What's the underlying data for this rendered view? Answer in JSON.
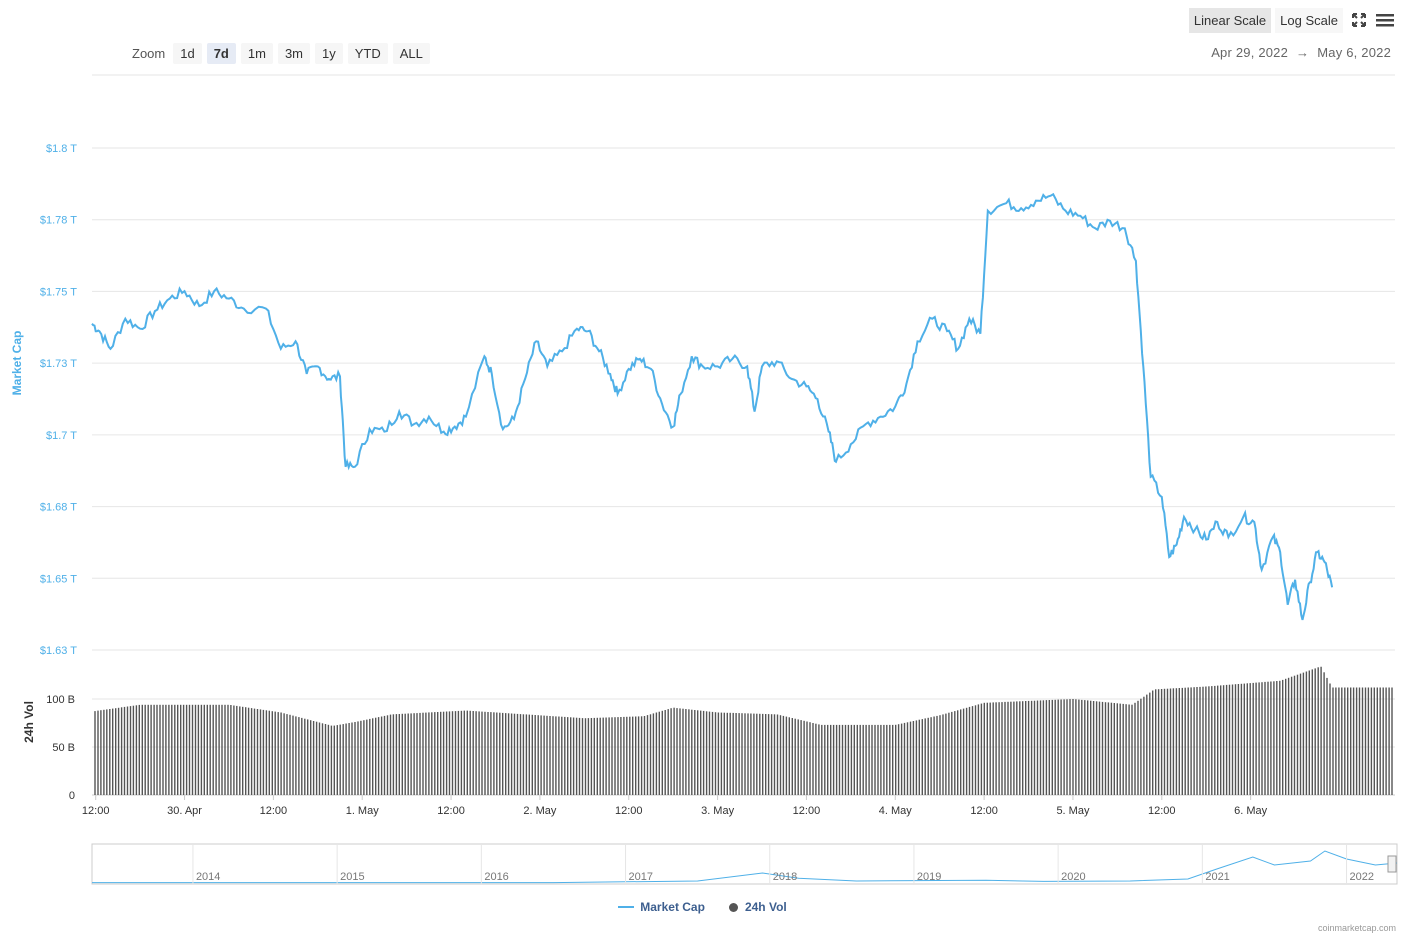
{
  "toolbar": {
    "zoom_label": "Zoom",
    "zoom_options": [
      "1d",
      "7d",
      "1m",
      "3m",
      "1y",
      "YTD",
      "ALL"
    ],
    "zoom_active": "7d",
    "linear_scale": "Linear Scale",
    "log_scale": "Log Scale",
    "date_from": "Apr 29, 2022",
    "date_arrow": "→",
    "date_to": "May 6, 2022"
  },
  "legend": {
    "market_cap": "Market Cap",
    "vol": "24h Vol"
  },
  "credit": "coinmarketcap.com",
  "colors": {
    "market_cap": "#4fb0e8",
    "volume": "#555555",
    "grid": "#e6e6e6",
    "axis_text": "#4fb0e8"
  },
  "chart_data": {
    "type": "line",
    "x_unit": "date-time",
    "x_range": [
      "2022-04-29 11:30",
      "2022-05-06 19:30"
    ],
    "ylabel": "Market Cap",
    "yticks": [
      "$1.63 T",
      "$1.65 T",
      "$1.68 T",
      "$1.7 T",
      "$1.73 T",
      "$1.75 T",
      "$1.78 T",
      "$1.8 T"
    ],
    "ylim": [
      1.625,
      1.825
    ],
    "x_tick_labels": [
      "12:00",
      "30. Apr",
      "12:00",
      "1. May",
      "12:00",
      "2. May",
      "12:00",
      "3. May",
      "12:00",
      "4. May",
      "12:00",
      "5. May",
      "12:00",
      "6. May"
    ],
    "series": [
      {
        "name": "Market Cap",
        "unit": "T USD",
        "points": [
          [
            "2022-04-29 11:30",
            1.755
          ],
          [
            "2022-04-29 12:30",
            1.752
          ],
          [
            "2022-04-29 14:00",
            1.745
          ],
          [
            "2022-04-29 16:00",
            1.757
          ],
          [
            "2022-04-29 18:00",
            1.753
          ],
          [
            "2022-04-29 20:00",
            1.76
          ],
          [
            "2022-04-29 22:00",
            1.765
          ],
          [
            "2022-04-30 00:00",
            1.768
          ],
          [
            "2022-04-30 02:00",
            1.762
          ],
          [
            "2022-04-30 04:00",
            1.768
          ],
          [
            "2022-04-30 06:00",
            1.765
          ],
          [
            "2022-04-30 08:00",
            1.761
          ],
          [
            "2022-04-30 11:00",
            1.761
          ],
          [
            "2022-04-30 13:00",
            1.745
          ],
          [
            "2022-04-30 15:00",
            1.748
          ],
          [
            "2022-04-30 16:30",
            1.735
          ],
          [
            "2022-04-30 18:00",
            1.738
          ],
          [
            "2022-04-30 19:30",
            1.733
          ],
          [
            "2022-04-30 21:00",
            1.734
          ],
          [
            "2022-04-30 21:45",
            1.698
          ],
          [
            "2022-04-30 23:00",
            1.698
          ],
          [
            "2022-05-01 01:00",
            1.713
          ],
          [
            "2022-05-01 03:00",
            1.712
          ],
          [
            "2022-05-01 05:00",
            1.72
          ],
          [
            "2022-05-01 07:00",
            1.715
          ],
          [
            "2022-05-01 09:00",
            1.718
          ],
          [
            "2022-05-01 11:00",
            1.712
          ],
          [
            "2022-05-01 12:30",
            1.714
          ],
          [
            "2022-05-01 14:00",
            1.718
          ],
          [
            "2022-05-01 16:30",
            1.742
          ],
          [
            "2022-05-01 17:30",
            1.735
          ],
          [
            "2022-05-01 19:00",
            1.713
          ],
          [
            "2022-05-01 20:30",
            1.717
          ],
          [
            "2022-05-01 22:00",
            1.733
          ],
          [
            "2022-05-01 23:30",
            1.748
          ],
          [
            "2022-05-02 01:00",
            1.738
          ],
          [
            "2022-05-02 03:00",
            1.744
          ],
          [
            "2022-05-02 05:00",
            1.753
          ],
          [
            "2022-05-02 06:30",
            1.752
          ],
          [
            "2022-05-02 08:00",
            1.744
          ],
          [
            "2022-05-02 09:30",
            1.735
          ],
          [
            "2022-05-02 10:30",
            1.727
          ],
          [
            "2022-05-02 12:00",
            1.737
          ],
          [
            "2022-05-02 13:30",
            1.741
          ],
          [
            "2022-05-02 15:00",
            1.737
          ],
          [
            "2022-05-02 16:30",
            1.723
          ],
          [
            "2022-05-02 18:00",
            1.714
          ],
          [
            "2022-05-02 19:00",
            1.727
          ],
          [
            "2022-05-02 20:30",
            1.742
          ],
          [
            "2022-05-02 22:00",
            1.738
          ],
          [
            "2022-05-03 00:00",
            1.738
          ],
          [
            "2022-05-03 02:00",
            1.741
          ],
          [
            "2022-05-03 04:00",
            1.738
          ],
          [
            "2022-05-03 05:00",
            1.72
          ],
          [
            "2022-05-03 06:00",
            1.738
          ],
          [
            "2022-05-03 08:00",
            1.74
          ],
          [
            "2022-05-03 10:00",
            1.733
          ],
          [
            "2022-05-03 12:00",
            1.73
          ],
          [
            "2022-05-03 13:30",
            1.725
          ],
          [
            "2022-05-03 15:00",
            1.712
          ],
          [
            "2022-05-03 16:00",
            1.7
          ],
          [
            "2022-05-03 18:00",
            1.707
          ],
          [
            "2022-05-03 20:00",
            1.715
          ],
          [
            "2022-05-03 22:00",
            1.718
          ],
          [
            "2022-05-04 00:00",
            1.722
          ],
          [
            "2022-05-04 01:30",
            1.731
          ],
          [
            "2022-05-04 03:00",
            1.748
          ],
          [
            "2022-05-04 05:00",
            1.757
          ],
          [
            "2022-05-04 07:00",
            1.752
          ],
          [
            "2022-05-04 08:30",
            1.745
          ],
          [
            "2022-05-04 10:00",
            1.757
          ],
          [
            "2022-05-04 11:30",
            1.751
          ],
          [
            "2022-05-04 12:30",
            1.8
          ],
          [
            "2022-05-04 15:00",
            1.803
          ],
          [
            "2022-05-04 17:00",
            1.801
          ],
          [
            "2022-05-04 19:00",
            1.804
          ],
          [
            "2022-05-04 21:00",
            1.806
          ],
          [
            "2022-05-04 23:00",
            1.8
          ],
          [
            "2022-05-05 01:00",
            1.798
          ],
          [
            "2022-05-05 03:00",
            1.793
          ],
          [
            "2022-05-05 05:00",
            1.796
          ],
          [
            "2022-05-05 07:00",
            1.793
          ],
          [
            "2022-05-05 08:30",
            1.78
          ],
          [
            "2022-05-05 09:30",
            1.738
          ],
          [
            "2022-05-05 10:30",
            1.694
          ],
          [
            "2022-05-05 12:00",
            1.686
          ],
          [
            "2022-05-05 13:00",
            1.662
          ],
          [
            "2022-05-05 14:00",
            1.667
          ],
          [
            "2022-05-05 15:00",
            1.678
          ],
          [
            "2022-05-05 16:30",
            1.673
          ],
          [
            "2022-05-05 18:00",
            1.669
          ],
          [
            "2022-05-05 19:30",
            1.676
          ],
          [
            "2022-05-05 21:00",
            1.67
          ],
          [
            "2022-05-05 23:00",
            1.678
          ],
          [
            "2022-05-06 00:30",
            1.676
          ],
          [
            "2022-05-06 01:30",
            1.657
          ],
          [
            "2022-05-06 03:00",
            1.67
          ],
          [
            "2022-05-06 04:00",
            1.664
          ],
          [
            "2022-05-06 05:00",
            1.643
          ],
          [
            "2022-05-06 06:00",
            1.653
          ],
          [
            "2022-05-06 07:00",
            1.637
          ],
          [
            "2022-05-06 08:00",
            1.652
          ],
          [
            "2022-05-06 09:00",
            1.664
          ],
          [
            "2022-05-06 10:00",
            1.66
          ],
          [
            "2022-05-06 11:00",
            1.65
          ]
        ]
      },
      {
        "name": "24h Vol",
        "unit": "B USD",
        "yticks": [
          "0",
          "50 B",
          "100 B"
        ],
        "ylim": [
          0,
          150
        ],
        "ylabel": "24h Vol",
        "points": [
          [
            "2022-04-29 11:30",
            87
          ],
          [
            "2022-04-29 18:00",
            94
          ],
          [
            "2022-04-30 06:00",
            94
          ],
          [
            "2022-04-30 13:00",
            86
          ],
          [
            "2022-04-30 20:00",
            72
          ],
          [
            "2022-04-30 23:00",
            76
          ],
          [
            "2022-05-01 04:00",
            84
          ],
          [
            "2022-05-01 14:00",
            88
          ],
          [
            "2022-05-01 22:00",
            84
          ],
          [
            "2022-05-02 06:00",
            80
          ],
          [
            "2022-05-02 14:00",
            82
          ],
          [
            "2022-05-02 18:00",
            91
          ],
          [
            "2022-05-03 00:00",
            86
          ],
          [
            "2022-05-03 08:00",
            84
          ],
          [
            "2022-05-03 14:00",
            73
          ],
          [
            "2022-05-04 00:00",
            73
          ],
          [
            "2022-05-04 06:00",
            83
          ],
          [
            "2022-05-04 12:00",
            96
          ],
          [
            "2022-05-05 00:00",
            100
          ],
          [
            "2022-05-05 08:00",
            94
          ],
          [
            "2022-05-05 11:00",
            110
          ],
          [
            "2022-05-05 18:00",
            113
          ],
          [
            "2022-05-06 04:00",
            119
          ],
          [
            "2022-05-06 09:30",
            134
          ],
          [
            "2022-05-06 11:00",
            112
          ]
        ]
      }
    ],
    "navigator": {
      "x_labels": [
        "2014",
        "2015",
        "2016",
        "2017",
        "2018",
        "2019",
        "2020",
        "2021",
        "2022"
      ]
    },
    "legend_position": "bottom-center",
    "grid": true
  }
}
